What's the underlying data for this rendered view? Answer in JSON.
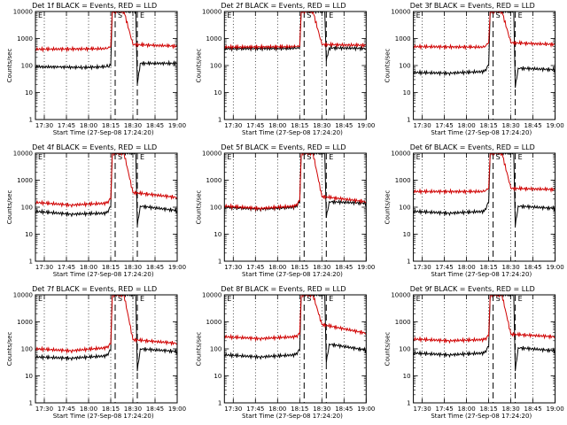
{
  "chart_data": [
    {
      "type": "line",
      "title": "Det 1f BLACK = Events, RED = LLD",
      "xlabel": "Start Time (27-Sep-08 17:24:20)",
      "ylabel": "Counts/sec",
      "yscale": "log",
      "ylim": [
        1,
        10000
      ],
      "x_ticks": [
        "17:30",
        "17:45",
        "18:00",
        "18:15",
        "18:30",
        "18:45",
        "19:00"
      ],
      "y_ticks": [
        "1",
        "10",
        "100",
        "1000",
        "10000"
      ],
      "markers": [
        {
          "label": "E",
          "x": "17:24"
        },
        {
          "label": "S",
          "x": "18:18"
        },
        {
          "label": "E",
          "x": "18:33"
        }
      ],
      "series": [
        {
          "name": "Events",
          "color": "#000000",
          "values": [
            [
              0,
              90
            ],
            [
              16,
              88
            ],
            [
              32,
              85
            ],
            [
              48,
              90
            ],
            [
              51,
              100
            ],
            [
              52,
              10000
            ],
            [
              68,
              10000
            ],
            [
              69,
              20
            ],
            [
              71,
              120
            ],
            [
              96,
              120
            ]
          ]
        },
        {
          "name": "LLD",
          "color": "#d00000",
          "values": [
            [
              0,
              400
            ],
            [
              48,
              420
            ],
            [
              51,
              500
            ],
            [
              52,
              10000
            ],
            [
              60,
              10000
            ],
            [
              66,
              600
            ],
            [
              96,
              520
            ]
          ]
        }
      ]
    },
    {
      "type": "line",
      "title": "Det 2f BLACK = Events, RED = LLD",
      "xlabel": "Start Time (27-Sep-08 17:24:20)",
      "ylabel": "Counts/sec",
      "yscale": "log",
      "ylim": [
        1,
        10000
      ],
      "x_ticks": [
        "17:30",
        "17:45",
        "18:00",
        "18:15",
        "18:30",
        "18:45",
        "19:00"
      ],
      "y_ticks": [
        "1",
        "10",
        "100",
        "1000",
        "10000"
      ],
      "markers": [
        {
          "label": "E",
          "x": "17:24"
        },
        {
          "label": "S",
          "x": "18:18"
        },
        {
          "label": "E",
          "x": "18:33"
        }
      ],
      "series": [
        {
          "name": "Events",
          "color": "#000000",
          "values": [
            [
              0,
              420
            ],
            [
              48,
              430
            ],
            [
              51,
              450
            ],
            [
              52,
              10000
            ],
            [
              68,
              10000
            ],
            [
              69,
              150
            ],
            [
              71,
              450
            ],
            [
              96,
              430
            ]
          ]
        },
        {
          "name": "LLD",
          "color": "#d00000",
          "values": [
            [
              0,
              480
            ],
            [
              48,
              500
            ],
            [
              51,
              520
            ],
            [
              52,
              10000
            ],
            [
              60,
              10000
            ],
            [
              66,
              600
            ],
            [
              96,
              560
            ]
          ]
        }
      ]
    },
    {
      "type": "line",
      "title": "Det 3f BLACK = Events, RED = LLD",
      "xlabel": "Start Time (27-Sep-08 17:24:20)",
      "ylabel": "Counts/sec",
      "yscale": "log",
      "ylim": [
        1,
        10000
      ],
      "x_ticks": [
        "17:30",
        "17:45",
        "18:00",
        "18:15",
        "18:30",
        "18:45",
        "19:00"
      ],
      "y_ticks": [
        "1",
        "10",
        "100",
        "1000",
        "10000"
      ],
      "markers": [
        {
          "label": "E",
          "x": "17:24"
        },
        {
          "label": "S",
          "x": "18:18"
        },
        {
          "label": "E",
          "x": "18:33"
        }
      ],
      "series": [
        {
          "name": "Events",
          "color": "#000000",
          "values": [
            [
              0,
              55
            ],
            [
              24,
              52
            ],
            [
              48,
              60
            ],
            [
              51,
              100
            ],
            [
              52,
              10000
            ],
            [
              68,
              10000
            ],
            [
              69,
              15
            ],
            [
              71,
              80
            ],
            [
              96,
              70
            ]
          ]
        },
        {
          "name": "LLD",
          "color": "#d00000",
          "values": [
            [
              0,
              500
            ],
            [
              48,
              480
            ],
            [
              51,
              700
            ],
            [
              52,
              10000
            ],
            [
              60,
              10000
            ],
            [
              66,
              700
            ],
            [
              96,
              600
            ]
          ]
        }
      ]
    },
    {
      "type": "line",
      "title": "Det 4f BLACK = Events, RED = LLD",
      "xlabel": "Start Time (27-Sep-08 17:24:20)",
      "ylabel": "Counts/sec",
      "yscale": "log",
      "ylim": [
        1,
        10000
      ],
      "x_ticks": [
        "17:30",
        "17:45",
        "18:00",
        "18:15",
        "18:30",
        "18:45",
        "19:00"
      ],
      "y_ticks": [
        "1",
        "10",
        "100",
        "1000",
        "10000"
      ],
      "markers": [
        {
          "label": "E",
          "x": "17:24"
        },
        {
          "label": "S",
          "x": "18:18"
        },
        {
          "label": "E",
          "x": "18:33"
        }
      ],
      "series": [
        {
          "name": "Events",
          "color": "#000000",
          "values": [
            [
              0,
              70
            ],
            [
              24,
              55
            ],
            [
              48,
              60
            ],
            [
              51,
              100
            ],
            [
              52,
              10000
            ],
            [
              68,
              10000
            ],
            [
              69,
              20
            ],
            [
              71,
              110
            ],
            [
              96,
              75
            ]
          ]
        },
        {
          "name": "LLD",
          "color": "#d00000",
          "values": [
            [
              0,
              150
            ],
            [
              24,
              120
            ],
            [
              48,
              140
            ],
            [
              51,
              200
            ],
            [
              52,
              10000
            ],
            [
              60,
              10000
            ],
            [
              66,
              350
            ],
            [
              96,
              230
            ]
          ]
        }
      ]
    },
    {
      "type": "line",
      "title": "Det 5f BLACK = Events, RED = LLD",
      "xlabel": "Start Time (27-Sep-08 17:24:20)",
      "ylabel": "Counts/sec",
      "yscale": "log",
      "ylim": [
        1,
        10000
      ],
      "x_ticks": [
        "17:30",
        "17:45",
        "18:00",
        "18:15",
        "18:30",
        "18:45",
        "19:00"
      ],
      "y_ticks": [
        "1",
        "10",
        "100",
        "1000",
        "10000"
      ],
      "markers": [
        {
          "label": "E",
          "x": "17:24"
        },
        {
          "label": "S",
          "x": "18:18"
        },
        {
          "label": "E",
          "x": "18:33"
        }
      ],
      "series": [
        {
          "name": "Events",
          "color": "#000000",
          "values": [
            [
              0,
              100
            ],
            [
              24,
              85
            ],
            [
              48,
              100
            ],
            [
              51,
              150
            ],
            [
              52,
              10000
            ],
            [
              68,
              10000
            ],
            [
              69,
              40
            ],
            [
              71,
              160
            ],
            [
              96,
              140
            ]
          ]
        },
        {
          "name": "LLD",
          "color": "#d00000",
          "values": [
            [
              0,
              110
            ],
            [
              24,
              90
            ],
            [
              48,
              110
            ],
            [
              51,
              170
            ],
            [
              52,
              10000
            ],
            [
              60,
              10000
            ],
            [
              66,
              250
            ],
            [
              96,
              160
            ]
          ]
        }
      ]
    },
    {
      "type": "line",
      "title": "Det 6f BLACK = Events, RED = LLD",
      "xlabel": "Start Time (27-Sep-08 17:24:20)",
      "ylabel": "Counts/sec",
      "yscale": "log",
      "ylim": [
        1,
        10000
      ],
      "x_ticks": [
        "17:30",
        "17:45",
        "18:00",
        "18:15",
        "18:30",
        "18:45",
        "19:00"
      ],
      "y_ticks": [
        "1",
        "10",
        "100",
        "1000",
        "10000"
      ],
      "markers": [
        {
          "label": "E",
          "x": "17:24"
        },
        {
          "label": "S",
          "x": "18:18"
        },
        {
          "label": "E",
          "x": "18:33"
        }
      ],
      "series": [
        {
          "name": "Events",
          "color": "#000000",
          "values": [
            [
              0,
              70
            ],
            [
              24,
              60
            ],
            [
              48,
              70
            ],
            [
              51,
              150
            ],
            [
              52,
              10000
            ],
            [
              68,
              10000
            ],
            [
              69,
              20
            ],
            [
              71,
              110
            ],
            [
              96,
              90
            ]
          ]
        },
        {
          "name": "LLD",
          "color": "#d00000",
          "values": [
            [
              0,
              380
            ],
            [
              48,
              380
            ],
            [
              51,
              500
            ],
            [
              52,
              10000
            ],
            [
              60,
              10000
            ],
            [
              66,
              500
            ],
            [
              96,
              450
            ]
          ]
        }
      ]
    },
    {
      "type": "line",
      "title": "Det 7f BLACK = Events, RED = LLD",
      "xlabel": "Start Time (27-Sep-08 17:24:20)",
      "ylabel": "Counts/sec",
      "yscale": "log",
      "ylim": [
        1,
        10000
      ],
      "x_ticks": [
        "17:30",
        "17:45",
        "18:00",
        "18:15",
        "18:30",
        "18:45",
        "19:00"
      ],
      "y_ticks": [
        "1",
        "10",
        "100",
        "1000",
        "10000"
      ],
      "markers": [
        {
          "label": "E",
          "x": "17:24"
        },
        {
          "label": "S",
          "x": "18:18"
        },
        {
          "label": "E",
          "x": "18:33"
        }
      ],
      "series": [
        {
          "name": "Events",
          "color": "#000000",
          "values": [
            [
              0,
              50
            ],
            [
              24,
              45
            ],
            [
              48,
              55
            ],
            [
              51,
              90
            ],
            [
              52,
              10000
            ],
            [
              68,
              10000
            ],
            [
              69,
              15
            ],
            [
              71,
              100
            ],
            [
              96,
              80
            ]
          ]
        },
        {
          "name": "LLD",
          "color": "#d00000",
          "values": [
            [
              0,
              100
            ],
            [
              24,
              85
            ],
            [
              48,
              110
            ],
            [
              51,
              150
            ],
            [
              52,
              10000
            ],
            [
              60,
              10000
            ],
            [
              66,
              220
            ],
            [
              96,
              160
            ]
          ]
        }
      ]
    },
    {
      "type": "line",
      "title": "Det 8f BLACK = Events, RED = LLD",
      "xlabel": "Start Time (27-Sep-08 17:24:20)",
      "ylabel": "Counts/sec",
      "yscale": "log",
      "ylim": [
        1,
        10000
      ],
      "x_ticks": [
        "17:30",
        "17:45",
        "18:00",
        "18:15",
        "18:30",
        "18:45",
        "19:00"
      ],
      "y_ticks": [
        "1",
        "10",
        "100",
        "1000",
        "10000"
      ],
      "markers": [
        {
          "label": "E",
          "x": "17:24"
        },
        {
          "label": "S",
          "x": "18:18"
        },
        {
          "label": "E",
          "x": "18:33"
        }
      ],
      "series": [
        {
          "name": "Events",
          "color": "#000000",
          "values": [
            [
              0,
              60
            ],
            [
              24,
              50
            ],
            [
              48,
              60
            ],
            [
              51,
              90
            ],
            [
              52,
              10000
            ],
            [
              68,
              10000
            ],
            [
              69,
              30
            ],
            [
              71,
              150
            ],
            [
              96,
              90
            ]
          ]
        },
        {
          "name": "LLD",
          "color": "#d00000",
          "values": [
            [
              0,
              280
            ],
            [
              24,
              240
            ],
            [
              48,
              280
            ],
            [
              51,
              350
            ],
            [
              52,
              10000
            ],
            [
              60,
              10000
            ],
            [
              66,
              800
            ],
            [
              96,
              380
            ]
          ]
        }
      ]
    },
    {
      "type": "line",
      "title": "Det 9f BLACK = Events, RED = LLD",
      "xlabel": "Start Time (27-Sep-08 17:24:20)",
      "ylabel": "Counts/sec",
      "yscale": "log",
      "ylim": [
        1,
        10000
      ],
      "x_ticks": [
        "17:30",
        "17:45",
        "18:00",
        "18:15",
        "18:30",
        "18:45",
        "19:00"
      ],
      "y_ticks": [
        "1",
        "10",
        "100",
        "1000",
        "10000"
      ],
      "markers": [
        {
          "label": "E",
          "x": "17:24"
        },
        {
          "label": "S",
          "x": "18:18"
        },
        {
          "label": "E",
          "x": "18:33"
        }
      ],
      "series": [
        {
          "name": "Events",
          "color": "#000000",
          "values": [
            [
              0,
              70
            ],
            [
              24,
              60
            ],
            [
              48,
              70
            ],
            [
              51,
              120
            ],
            [
              52,
              10000
            ],
            [
              68,
              10000
            ],
            [
              69,
              15
            ],
            [
              71,
              110
            ],
            [
              96,
              85
            ]
          ]
        },
        {
          "name": "LLD",
          "color": "#d00000",
          "values": [
            [
              0,
              230
            ],
            [
              24,
              200
            ],
            [
              48,
              220
            ],
            [
              51,
              300
            ],
            [
              52,
              10000
            ],
            [
              60,
              10000
            ],
            [
              66,
              350
            ],
            [
              96,
              280
            ]
          ]
        }
      ]
    }
  ]
}
